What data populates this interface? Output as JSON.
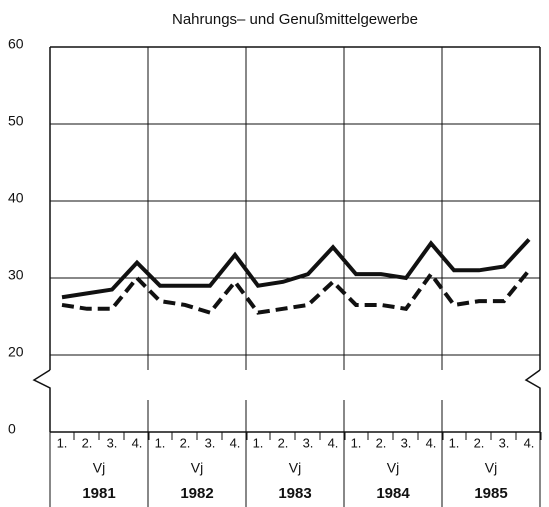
{
  "chart_data": {
    "type": "line",
    "title": "Nahrungs– und Genußmittelgewerbe",
    "categories": [
      "1.",
      "2.",
      "3.",
      "4.",
      "1.",
      "2.",
      "3.",
      "4.",
      "1.",
      "2.",
      "3.",
      "4.",
      "1.",
      "2.",
      "3.",
      "4.",
      "1.",
      "2.",
      "3.",
      "4."
    ],
    "group_label": "Vj",
    "groups": [
      "1981",
      "1982",
      "1983",
      "1984",
      "1985"
    ],
    "series": [
      {
        "color": "#111111",
        "dashed": false,
        "values": [
          27.5,
          28,
          28.5,
          32,
          29,
          29,
          29,
          33,
          29,
          29.5,
          30.5,
          34,
          30.5,
          30.5,
          30,
          34.5,
          31,
          31,
          31.5,
          35
        ]
      },
      {
        "color": "#111111",
        "dashed": true,
        "values": [
          26.5,
          26,
          26,
          30,
          27,
          26.5,
          25.5,
          29.5,
          25.5,
          26,
          26.5,
          29.5,
          26.5,
          26.5,
          26,
          30.5,
          26.5,
          27,
          27,
          31
        ]
      }
    ],
    "ylim": [
      0,
      60
    ],
    "yticks": [
      0,
      20,
      30,
      40,
      50,
      60
    ],
    "ybreak": [
      0,
      20
    ],
    "grid": true
  }
}
